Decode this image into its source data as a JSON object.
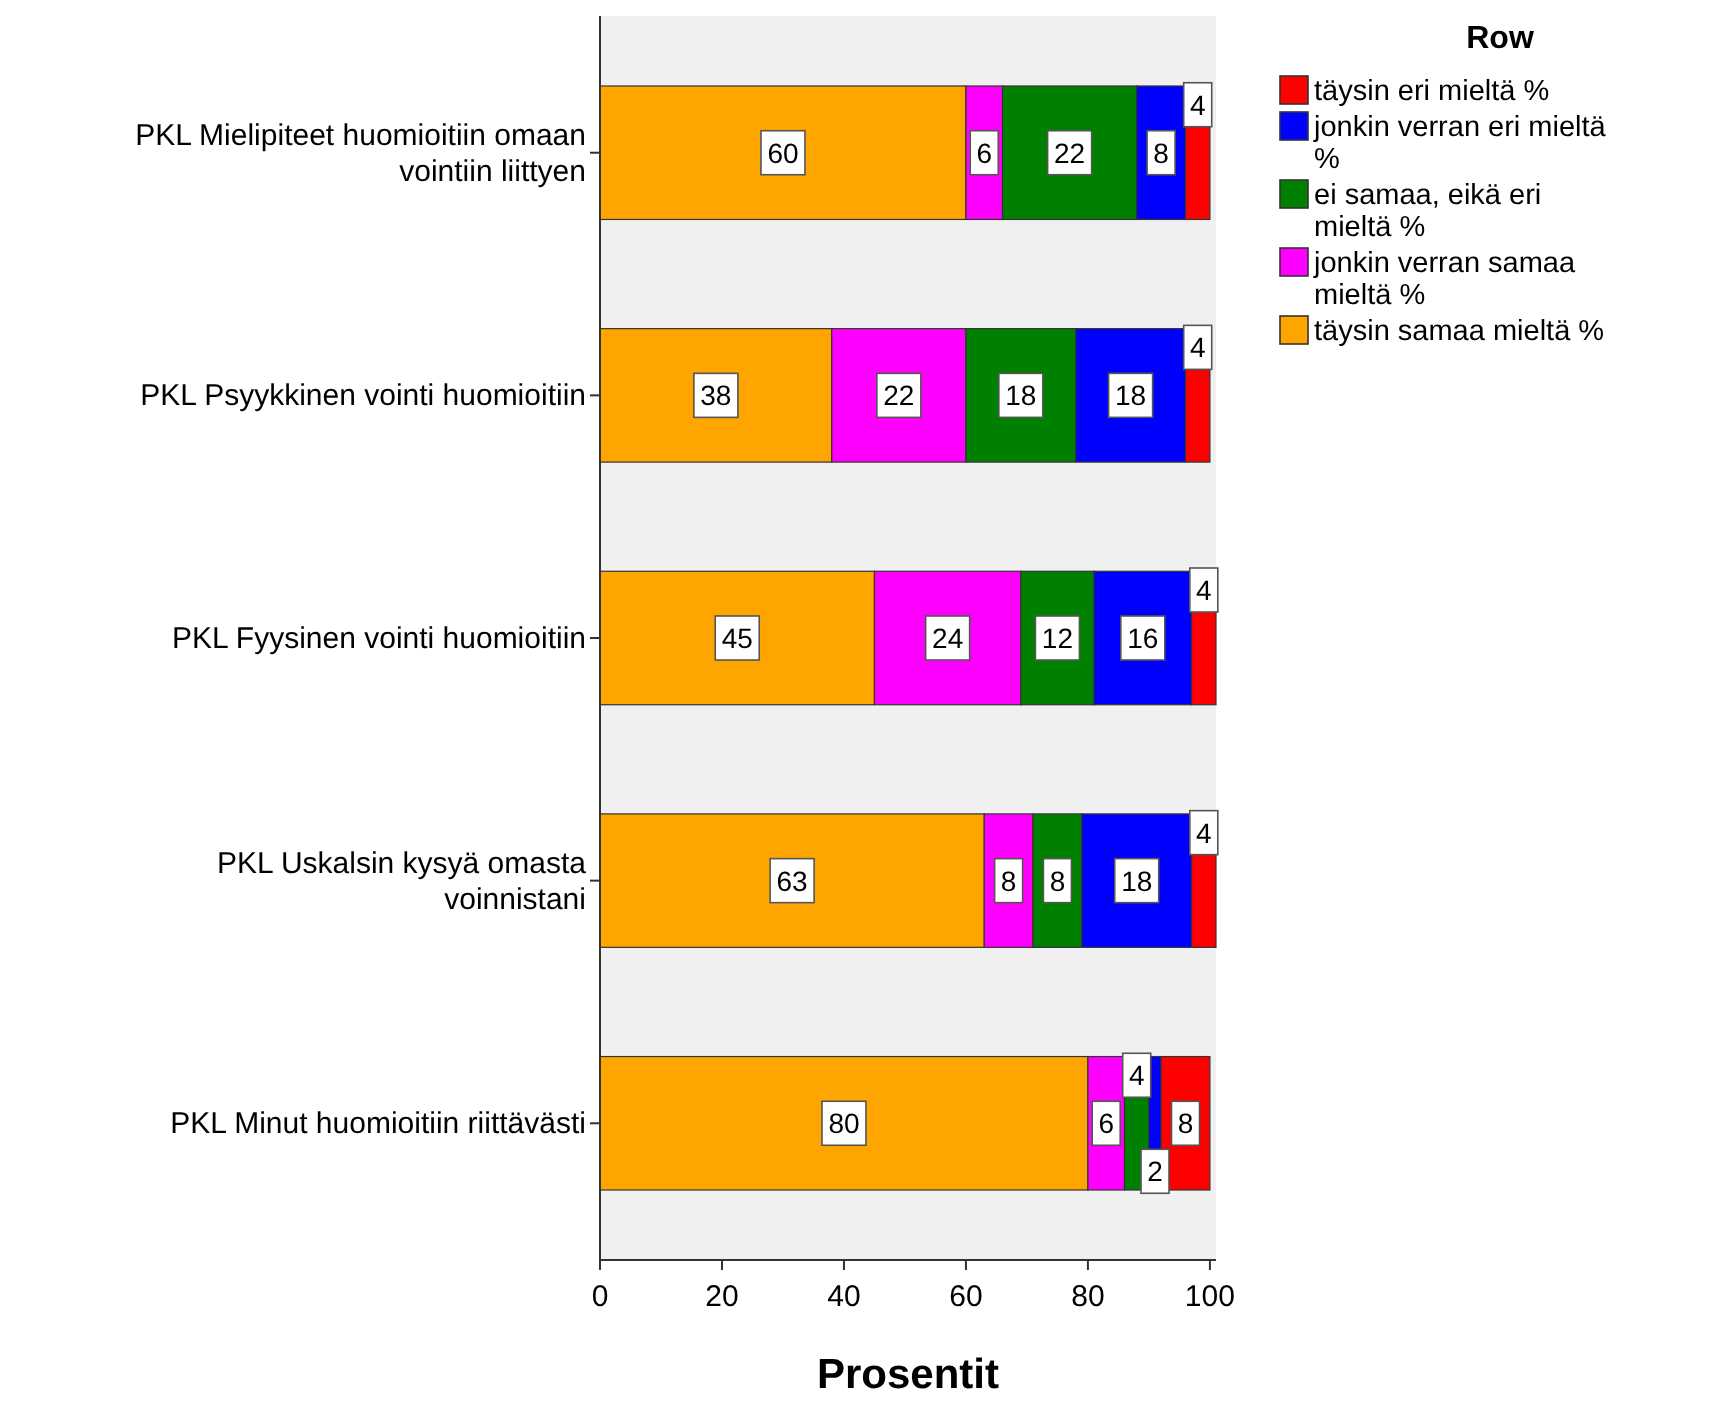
{
  "chart_data": {
    "type": "bar",
    "orientation": "horizontal",
    "stacked": true,
    "xlabel": "Prosentit",
    "legend_title": "Row",
    "legend": "top right",
    "data_labels": true,
    "grid": false,
    "categories": [
      "PKL Mielipiteet huomioitiin omaan vointiin liittyen",
      "PKL Psyykkinen vointi huomioitiin",
      "PKL Fyysinen vointi huomioitiin",
      "PKL Uskalsin kysyä omasta voinnistani",
      "PKL Minut huomioitiin riittävästi"
    ],
    "xlim": [
      0,
      101
    ],
    "xticks": [
      0,
      20,
      40,
      60,
      80,
      100
    ],
    "series": [
      {
        "name": "täysin samaa mieltä  %",
        "color": "#ffa500",
        "values": [
          60,
          38,
          45,
          63,
          80
        ]
      },
      {
        "name": "jonkin verran samaa mieltä  %",
        "color": "#ff00ff",
        "values": [
          6,
          22,
          24,
          8,
          6
        ]
      },
      {
        "name": "ei samaa, eikä eri mieltä %",
        "color": "#008000",
        "values": [
          22,
          18,
          12,
          8,
          4
        ]
      },
      {
        "name": "jonkin verran eri mieltä %",
        "color": "#0000ff",
        "values": [
          8,
          18,
          16,
          18,
          2
        ]
      },
      {
        "name": "täysin eri mieltä  %",
        "color": "#ff0000",
        "values": [
          4,
          4,
          4,
          4,
          8
        ]
      }
    ]
  }
}
